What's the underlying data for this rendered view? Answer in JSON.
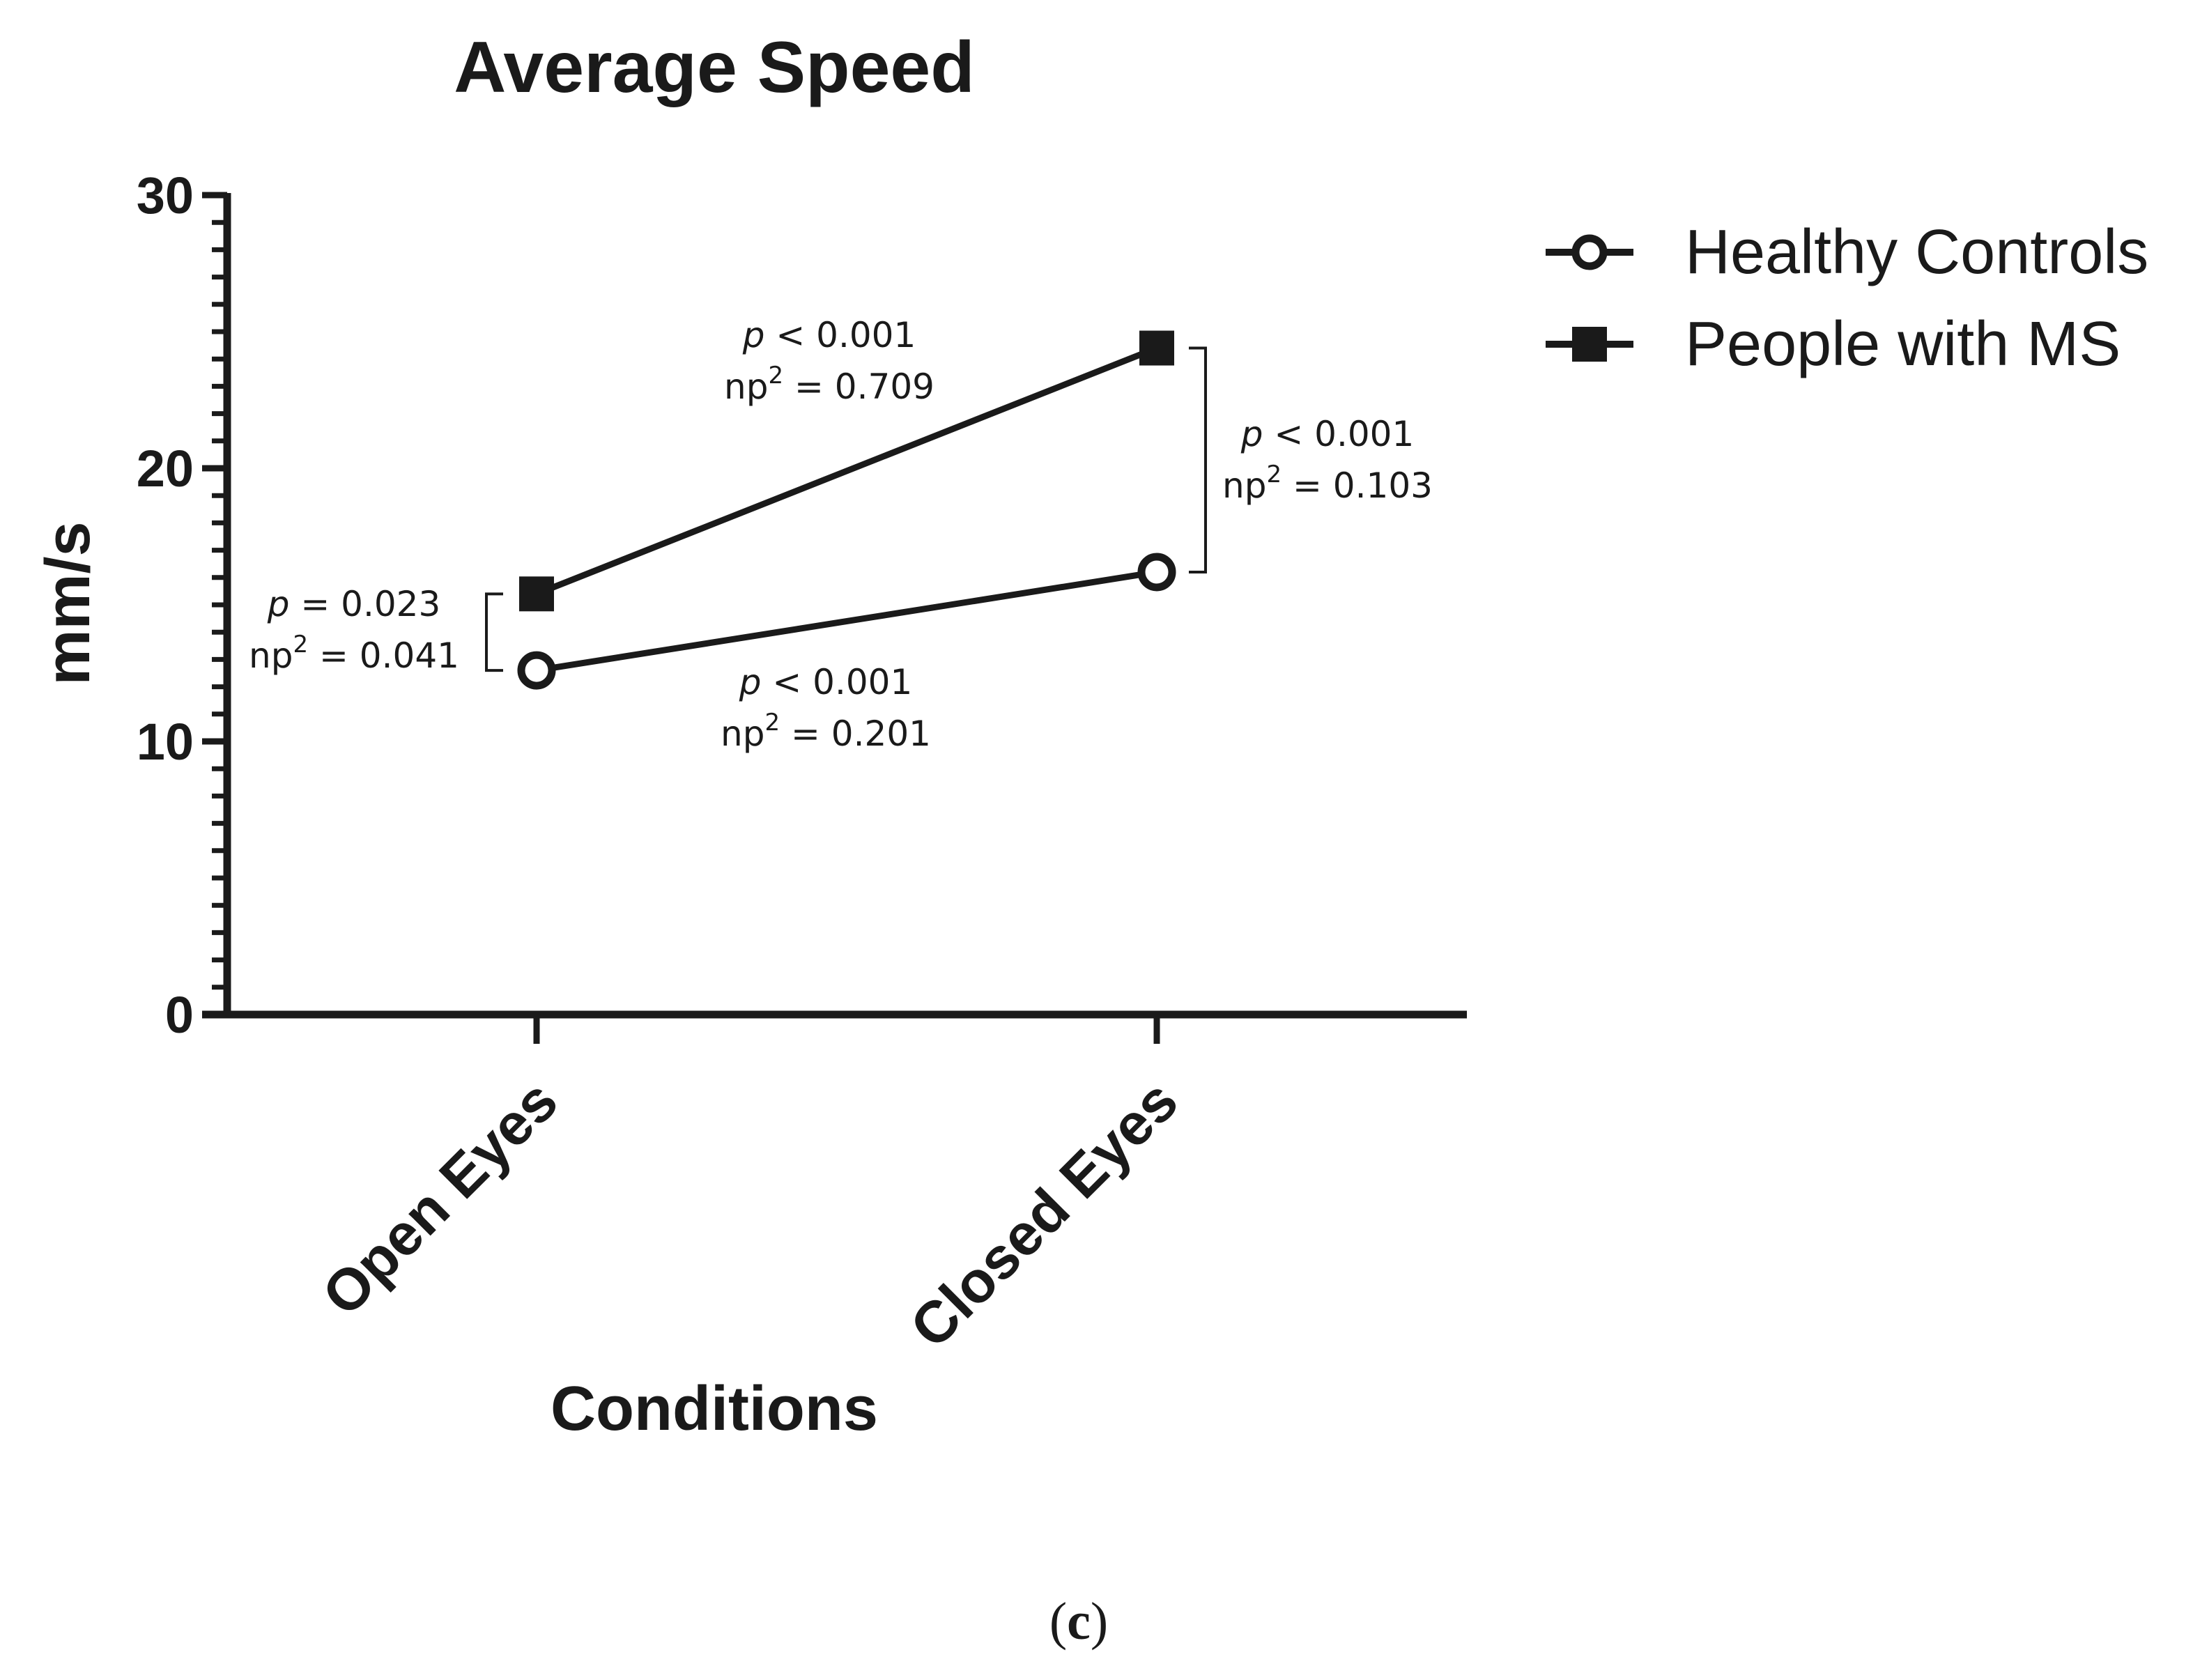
{
  "chart_data": {
    "type": "line",
    "title": "Average Speed",
    "xlabel": "Conditions",
    "ylabel": "mm/s",
    "categories": [
      "Open Eyes",
      "Closed Eyes"
    ],
    "ylim": [
      0,
      30
    ],
    "yticks": [
      0,
      10,
      20,
      30
    ],
    "series": [
      {
        "name": "Healthy Controls",
        "marker": "open-circle",
        "values": [
          12.6,
          16.2
        ]
      },
      {
        "name": "People with MS",
        "marker": "filled-square",
        "values": [
          15.4,
          24.4
        ]
      }
    ],
    "legend_position": "top-right",
    "annotations": {
      "ms_change": {
        "p_symbol": "p",
        "p_text": " < 0.001",
        "np_base": "np",
        "np_exp": "2",
        "np_text": " =  0.709"
      },
      "hc_change": {
        "p_symbol": "p",
        "p_text": " < 0.001",
        "np_base": "np",
        "np_exp": "2",
        "np_text": " =  0.201"
      },
      "open_group": {
        "p_symbol": "p",
        "p_text": " = 0.023",
        "np_base": "np",
        "np_exp": "2",
        "np_text": " = 0.041"
      },
      "closed_group": {
        "p_symbol": "p",
        "p_text": " < 0.001",
        "np_base": "np",
        "np_exp": "2",
        "np_text": " =  0.103"
      }
    },
    "caption": {
      "open": "(",
      "letter": "c",
      "close": ")"
    },
    "colors": {
      "line": "#1a1a1a",
      "background": "#ffffff"
    }
  }
}
